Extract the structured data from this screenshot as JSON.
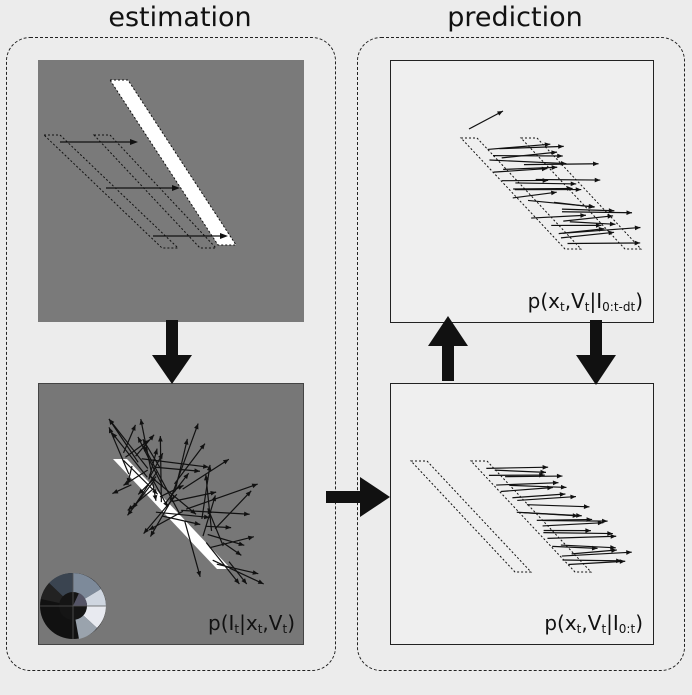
{
  "titles": {
    "estimation": "estimation",
    "prediction": "prediction"
  },
  "labels": {
    "likelihood": {
      "pre": "p(I",
      "s1": "t",
      "mid1": "|x",
      "s2": "t",
      "mid2": ",V",
      "s3": "t",
      "post": ")"
    },
    "prior": {
      "pre": "p(x",
      "s1": "t",
      "mid1": ",V",
      "s2": "t",
      "mid2": "|I",
      "s3": "0:t-dt",
      "post": ")"
    },
    "posterior": {
      "pre": "p(x",
      "s1": "t",
      "mid1": ",V",
      "s2": "t",
      "mid2": "|I",
      "s3": "0:t",
      "post": ")"
    }
  },
  "colors": {
    "background": "#ececec",
    "panel_gray": "#7a7a7a",
    "arrow": "#111111",
    "bar": "#ffffff"
  },
  "icons": [
    "down-arrow-icon",
    "right-arrow-icon",
    "up-arrow-icon",
    "down-arrow-icon",
    "color-wheel-icon"
  ]
}
